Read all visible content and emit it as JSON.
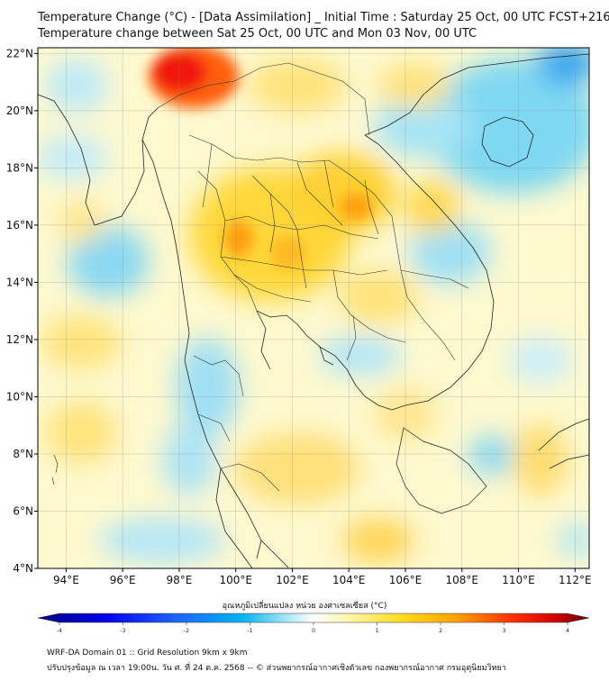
{
  "title_line1": "Temperature Change (°C) - [Data Assimilation] _ Initial Time : Saturday 25 Oct, 00 UTC FCST+216",
  "title_line2": "Temperature change between Sat 25 Oct, 00 UTC and Mon 03 Nov, 00 UTC",
  "map": {
    "lon_range": [
      93,
      112.5
    ],
    "lat_range": [
      4,
      22.2
    ],
    "lon_ticks": [
      {
        "value": 94,
        "label": "94°E"
      },
      {
        "value": 96,
        "label": "96°E"
      },
      {
        "value": 98,
        "label": "98°E"
      },
      {
        "value": 100,
        "label": "100°E"
      },
      {
        "value": 102,
        "label": "102°E"
      },
      {
        "value": 104,
        "label": "104°E"
      },
      {
        "value": 106,
        "label": "106°E"
      },
      {
        "value": 108,
        "label": "108°E"
      },
      {
        "value": 110,
        "label": "110°E"
      },
      {
        "value": 112,
        "label": "112°E"
      }
    ],
    "lat_ticks": [
      {
        "value": 22,
        "label": "22°N"
      },
      {
        "value": 20,
        "label": "20°N"
      },
      {
        "value": 18,
        "label": "18°N"
      },
      {
        "value": 16,
        "label": "16°N"
      },
      {
        "value": 14,
        "label": "14°N"
      },
      {
        "value": 12,
        "label": "12°N"
      },
      {
        "value": 10,
        "label": "10°N"
      },
      {
        "value": 8,
        "label": "8°N"
      },
      {
        "value": 6,
        "label": "6°N"
      },
      {
        "value": 4,
        "label": "4°N"
      }
    ],
    "grid": true,
    "background_color": "#fdf9cf"
  },
  "colorbar": {
    "title": "อุณหภูมิเปลี่ยนแปลง หน่วย องศาเซลเซียส (°C)",
    "ticks": [
      "-4",
      "-3",
      "-2",
      "-1",
      "0",
      "1",
      "2",
      "3",
      "4"
    ],
    "min": -4,
    "max": 4,
    "colors": [
      "#000080",
      "#0000e0",
      "#1e5cff",
      "#00b4f0",
      "#79dcf5",
      "#ffffff",
      "#fff5a0",
      "#ffd700",
      "#ffa000",
      "#ff3000",
      "#d00000",
      "#600000"
    ]
  },
  "footer_line1": "WRF-DA Domain 01 :: Grid Resolution 9km x 9km",
  "footer_line2": "ปรับปรุงข้อมูล ณ เวลา 19:00น. วัน ศ. ที่ 24 ต.ค. 2568 -- © ส่วนพยากรณ์อากาศเชิงตัวเลข กองพยากรณ์อากาศ กรมอุตุนิยมวิทยา"
}
